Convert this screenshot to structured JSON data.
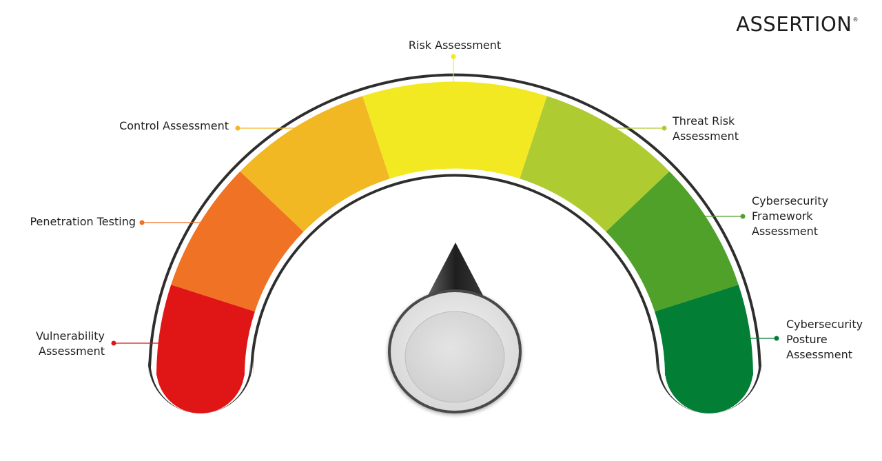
{
  "brand": {
    "name": "ASSERTION",
    "mark": "®"
  },
  "segments": [
    {
      "id": "vulnerability",
      "lines": [
        "Vulnerability",
        "Assessment"
      ],
      "color": "#e01616"
    },
    {
      "id": "penetration",
      "lines": [
        "Penetration Testing"
      ],
      "color": "#f07224"
    },
    {
      "id": "control",
      "lines": [
        "Control Assessment"
      ],
      "color": "#f2b824"
    },
    {
      "id": "risk",
      "lines": [
        "Risk Assessment"
      ],
      "color": "#f2e922"
    },
    {
      "id": "threat",
      "lines": [
        "Threat Risk",
        "Assessment"
      ],
      "color": "#afcb32"
    },
    {
      "id": "framework",
      "lines": [
        "Cybersecurity",
        "Framework",
        "Assessment"
      ],
      "color": "#4fa12a"
    },
    {
      "id": "posture",
      "lines": [
        "Cybersecurity",
        "Posture",
        "Assessment"
      ],
      "color": "#027e35"
    }
  ],
  "needle": {
    "color": "#2a2a2a"
  }
}
